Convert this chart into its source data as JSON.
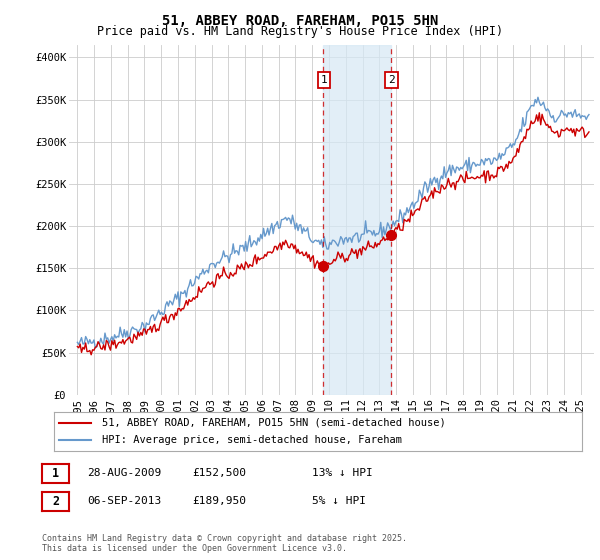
{
  "title": "51, ABBEY ROAD, FAREHAM, PO15 5HN",
  "subtitle": "Price paid vs. HM Land Registry's House Price Index (HPI)",
  "ylabel_ticks": [
    "£0",
    "£50K",
    "£100K",
    "£150K",
    "£200K",
    "£250K",
    "£300K",
    "£350K",
    "£400K"
  ],
  "ytick_values": [
    0,
    50000,
    100000,
    150000,
    200000,
    250000,
    300000,
    350000,
    400000
  ],
  "ylim": [
    0,
    415000
  ],
  "xlim_start": 1994.5,
  "xlim_end": 2025.8,
  "xticks": [
    1995,
    1996,
    1997,
    1998,
    1999,
    2000,
    2001,
    2002,
    2003,
    2004,
    2005,
    2006,
    2007,
    2008,
    2009,
    2010,
    2011,
    2012,
    2013,
    2014,
    2015,
    2016,
    2017,
    2018,
    2019,
    2020,
    2021,
    2022,
    2023,
    2024,
    2025
  ],
  "red_line_color": "#cc0000",
  "blue_line_color": "#6699cc",
  "marker1_x": 2009.65,
  "marker1_y": 152500,
  "marker2_x": 2013.68,
  "marker2_y": 189950,
  "vline1_x": 2009.65,
  "vline2_x": 2013.68,
  "shade_xmin": 2009.65,
  "shade_xmax": 2013.68,
  "legend_red_label": "51, ABBEY ROAD, FAREHAM, PO15 5HN (semi-detached house)",
  "legend_blue_label": "HPI: Average price, semi-detached house, Fareham",
  "table_row1": [
    "1",
    "28-AUG-2009",
    "£152,500",
    "13% ↓ HPI"
  ],
  "table_row2": [
    "2",
    "06-SEP-2013",
    "£189,950",
    "5% ↓ HPI"
  ],
  "footer_text": "Contains HM Land Registry data © Crown copyright and database right 2025.\nThis data is licensed under the Open Government Licence v3.0.",
  "bg_color": "#ffffff",
  "grid_color": "#cccccc",
  "title_fontsize": 10,
  "subtitle_fontsize": 8.5,
  "tick_fontsize": 7.5
}
